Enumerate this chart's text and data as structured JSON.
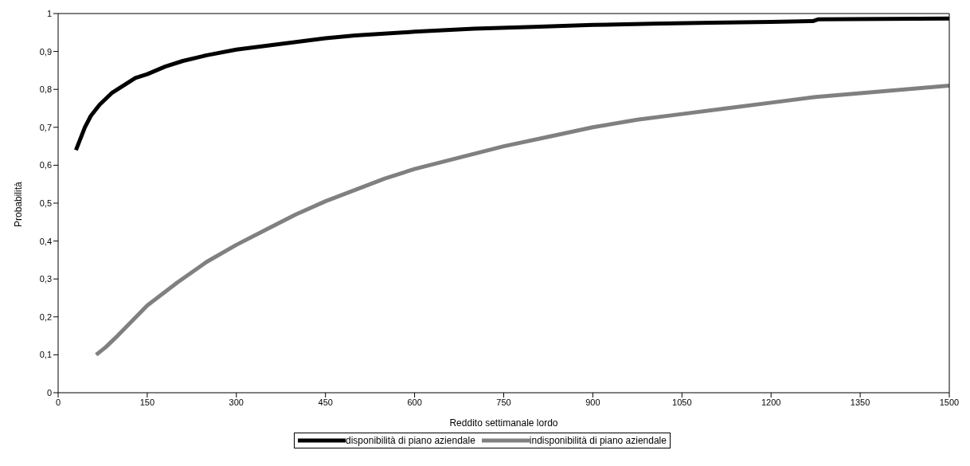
{
  "chart_data": {
    "type": "line",
    "xlabel": "Reddito settimanale lordo",
    "ylabel": "Probabilità",
    "xlim": [
      0,
      1500
    ],
    "xticks": [
      0,
      150,
      300,
      450,
      600,
      750,
      900,
      1050,
      1200,
      1350,
      1500
    ],
    "ylim": [
      0,
      1
    ],
    "yticks": [
      0,
      {
        "value": 0.1,
        "label": "0,1"
      },
      {
        "value": 0.2,
        "label": "0,2"
      },
      {
        "value": 0.3,
        "label": "0,3"
      },
      {
        "value": 0.4,
        "label": "0,4"
      },
      {
        "value": 0.5,
        "label": "0,5"
      },
      {
        "value": 0.6,
        "label": "0,6"
      },
      {
        "value": 0.7,
        "label": "0,7"
      },
      {
        "value": 0.8,
        "label": "0,8"
      },
      {
        "value": 0.9,
        "label": "0,9"
      },
      1
    ],
    "grid": false,
    "legend": "bottom",
    "marker": "none",
    "line_style": "solid",
    "series": [
      {
        "name": "disponibilità di piano aziendale",
        "color": "#000000",
        "x": [
          30,
          35,
          45,
          55,
          70,
          90,
          110,
          130,
          150,
          180,
          210,
          250,
          300,
          350,
          400,
          450,
          500,
          600,
          700,
          800,
          900,
          1000,
          1100,
          1200,
          1270,
          1280,
          1500
        ],
        "values": [
          0.64,
          0.66,
          0.7,
          0.73,
          0.76,
          0.79,
          0.81,
          0.83,
          0.84,
          0.86,
          0.875,
          0.89,
          0.905,
          0.915,
          0.925,
          0.935,
          0.942,
          0.952,
          0.96,
          0.965,
          0.97,
          0.973,
          0.976,
          0.978,
          0.98,
          0.985,
          0.987
        ]
      },
      {
        "name": "indisponibilità di piano aziendale",
        "color": "#808080",
        "x": [
          64,
          80,
          100,
          125,
          150,
          200,
          250,
          300,
          350,
          400,
          450,
          500,
          550,
          600,
          675,
          750,
          825,
          900,
          975,
          1050,
          1125,
          1200,
          1275,
          1350,
          1425,
          1500
        ],
        "values": [
          0.1,
          0.12,
          0.15,
          0.19,
          0.23,
          0.29,
          0.345,
          0.39,
          0.43,
          0.47,
          0.505,
          0.535,
          0.565,
          0.59,
          0.62,
          0.65,
          0.675,
          0.7,
          0.72,
          0.735,
          0.75,
          0.765,
          0.78,
          0.79,
          0.8,
          0.81
        ]
      }
    ]
  }
}
